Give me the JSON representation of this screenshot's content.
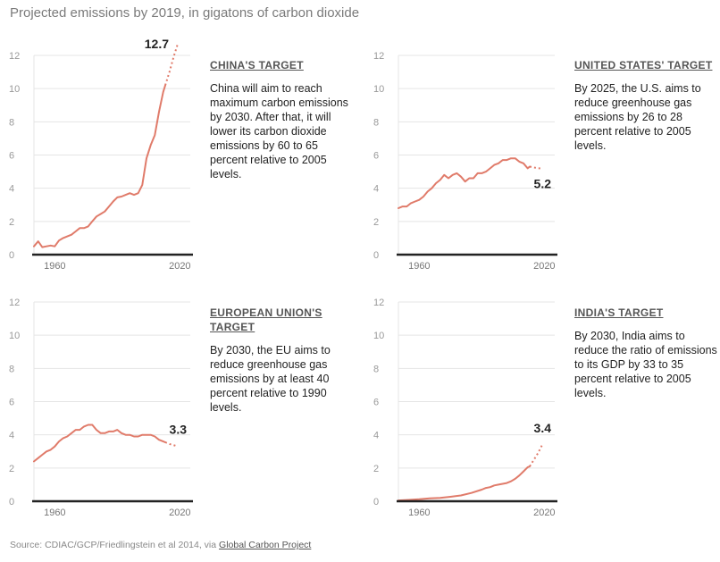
{
  "title": "Projected emissions by 2019, in gigatons of carbon dioxide",
  "source": {
    "prefix": "Source: CDIAC/GCP/Friedlingstein et al 2014, via ",
    "link": "Global Carbon Project"
  },
  "colors": {
    "line": "#e07b6a",
    "axis": "#222222",
    "grid": "#e5e5e5",
    "ticks": "#999999"
  },
  "panels": [
    {
      "heading": "CHINA'S TARGET",
      "text": "China will aim to reach maximum carbon emissions by 2030. After that, it will lower its carbon dioxide emissions by 60 to 65 percent relative to 2005 levels."
    },
    {
      "heading": "UNITED STATES' TARGET",
      "text": "By 2025, the U.S. aims to reduce greenhouse gas emissions by 26 to 28 percent relative to 2005 levels."
    },
    {
      "heading": "EUROPEAN UNION'S TARGET",
      "text": "By 2030, the EU aims to reduce greenhouse gas emissions by at least 40 percent relative to 1990 levels."
    },
    {
      "heading": "INDIA'S TARGET",
      "text": "By 2030, India aims to reduce the ratio of emissions to its GDP by 33 to 35 percent relative to 2005 levels."
    }
  ],
  "chart_data": [
    {
      "type": "line",
      "title": "China",
      "xlim": [
        1950,
        2025
      ],
      "ylim": [
        0,
        12
      ],
      "yticks": [
        0,
        2,
        4,
        6,
        8,
        10,
        12
      ],
      "xticks": [
        1960,
        2020
      ],
      "end_label": "12.7",
      "series": [
        {
          "name": "historical",
          "x": [
            1950,
            1952,
            1954,
            1956,
            1958,
            1960,
            1962,
            1964,
            1966,
            1968,
            1970,
            1972,
            1974,
            1976,
            1978,
            1980,
            1982,
            1984,
            1986,
            1988,
            1990,
            1992,
            1994,
            1996,
            1998,
            2000,
            2002,
            2004,
            2006,
            2008,
            2010,
            2012,
            2013
          ],
          "y": [
            0.5,
            0.8,
            0.45,
            0.5,
            0.55,
            0.5,
            0.85,
            1.0,
            1.1,
            1.2,
            1.4,
            1.6,
            1.6,
            1.7,
            2.0,
            2.3,
            2.45,
            2.6,
            2.9,
            3.2,
            3.45,
            3.5,
            3.6,
            3.7,
            3.6,
            3.7,
            4.2,
            5.8,
            6.6,
            7.2,
            8.6,
            9.8,
            10.2
          ]
        },
        {
          "name": "projection",
          "dashed": true,
          "x": [
            2013,
            2015,
            2017,
            2019
          ],
          "y": [
            10.2,
            11.0,
            11.9,
            12.7
          ]
        }
      ]
    },
    {
      "type": "line",
      "title": "United States",
      "xlim": [
        1950,
        2025
      ],
      "ylim": [
        0,
        12
      ],
      "yticks": [
        0,
        2,
        4,
        6,
        8,
        10,
        12
      ],
      "xticks": [
        1960,
        2020
      ],
      "end_label": "5.2",
      "series": [
        {
          "name": "historical",
          "x": [
            1950,
            1952,
            1954,
            1956,
            1958,
            1960,
            1962,
            1964,
            1966,
            1968,
            1970,
            1972,
            1974,
            1976,
            1978,
            1980,
            1982,
            1984,
            1986,
            1988,
            1990,
            1992,
            1994,
            1996,
            1998,
            2000,
            2002,
            2004,
            2006,
            2008,
            2010,
            2012,
            2013
          ],
          "y": [
            2.8,
            2.9,
            2.9,
            3.1,
            3.2,
            3.3,
            3.5,
            3.8,
            4.0,
            4.3,
            4.5,
            4.8,
            4.6,
            4.8,
            4.9,
            4.7,
            4.4,
            4.6,
            4.6,
            4.9,
            4.9,
            5.0,
            5.2,
            5.4,
            5.5,
            5.7,
            5.7,
            5.8,
            5.8,
            5.6,
            5.5,
            5.2,
            5.3
          ]
        },
        {
          "name": "projection",
          "dashed": true,
          "x": [
            2013,
            2015,
            2017,
            2019
          ],
          "y": [
            5.3,
            5.25,
            5.2,
            5.2
          ]
        }
      ]
    },
    {
      "type": "line",
      "title": "European Union",
      "xlim": [
        1950,
        2025
      ],
      "ylim": [
        0,
        12
      ],
      "yticks": [
        0,
        2,
        4,
        6,
        8,
        10,
        12
      ],
      "xticks": [
        1960,
        2020
      ],
      "end_label": "3.3",
      "series": [
        {
          "name": "historical",
          "x": [
            1950,
            1952,
            1954,
            1956,
            1958,
            1960,
            1962,
            1964,
            1966,
            1968,
            1970,
            1972,
            1974,
            1976,
            1978,
            1980,
            1982,
            1984,
            1986,
            1988,
            1990,
            1992,
            1994,
            1996,
            1998,
            2000,
            2002,
            2004,
            2006,
            2008,
            2010,
            2012,
            2013
          ],
          "y": [
            2.4,
            2.6,
            2.8,
            3.0,
            3.1,
            3.3,
            3.6,
            3.8,
            3.9,
            4.1,
            4.3,
            4.3,
            4.5,
            4.6,
            4.6,
            4.3,
            4.1,
            4.1,
            4.2,
            4.2,
            4.3,
            4.1,
            4.0,
            4.0,
            3.9,
            3.9,
            4.0,
            4.0,
            4.0,
            3.9,
            3.7,
            3.6,
            3.55
          ]
        },
        {
          "name": "projection",
          "dashed": true,
          "x": [
            2013,
            2015,
            2017,
            2019
          ],
          "y": [
            3.55,
            3.45,
            3.38,
            3.3
          ]
        }
      ]
    },
    {
      "type": "line",
      "title": "India",
      "xlim": [
        1950,
        2025
      ],
      "ylim": [
        0,
        12
      ],
      "yticks": [
        0,
        2,
        4,
        6,
        8,
        10,
        12
      ],
      "xticks": [
        1960,
        2020
      ],
      "end_label": "3.4",
      "series": [
        {
          "name": "historical",
          "x": [
            1950,
            1955,
            1960,
            1965,
            1970,
            1975,
            1980,
            1985,
            1990,
            1992,
            1994,
            1996,
            1998,
            2000,
            2002,
            2004,
            2006,
            2008,
            2010,
            2012,
            2013
          ],
          "y": [
            0.05,
            0.08,
            0.12,
            0.17,
            0.2,
            0.27,
            0.35,
            0.5,
            0.7,
            0.8,
            0.85,
            0.95,
            1.0,
            1.05,
            1.1,
            1.2,
            1.35,
            1.55,
            1.8,
            2.05,
            2.1
          ]
        },
        {
          "name": "projection",
          "dashed": true,
          "x": [
            2013,
            2015,
            2017,
            2019
          ],
          "y": [
            2.1,
            2.5,
            2.9,
            3.4
          ]
        }
      ]
    }
  ]
}
